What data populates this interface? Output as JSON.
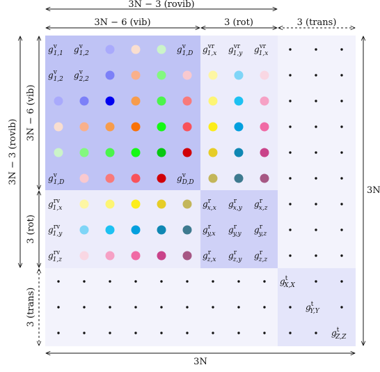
{
  "labels": {
    "top_rovib": "3N − 3 (rovib)",
    "top_vib": "3N − 6 (vib)",
    "top_rot": "3 (rot)",
    "top_trans": "3 (trans)",
    "left_rovib": "3N − 3 (rovib)",
    "left_vib": "3N − 6 (vib)",
    "left_rot": "3 (rot)",
    "left_trans": "3 (trans)",
    "right_total": "3N",
    "bottom_total": "3N"
  },
  "colors": {
    "vib_block": "#bfc3f5",
    "rot_block": "#cfd1f7",
    "trans_block": "#e4e5fa",
    "light_region": "#f3f3fc",
    "mid_region": "#ececfb",
    "dot_grid": [
      [
        "#a9aafc",
        "#f9ded0",
        "#cbf4c9"
      ],
      [
        "#7c80f8",
        "#f9b08b",
        "#83f87f",
        "#f9c9cf"
      ],
      [
        "#a9aafc",
        "#7c80f8",
        "#0000f0",
        "#f79c4c",
        "#4bf54b",
        "#f87a7a"
      ],
      [
        "#f9ded0",
        "#f9b08b",
        "#f79c4c",
        "#f97208",
        "#15f915",
        "#f9525b"
      ],
      [
        "#cbf4c9",
        "#83f87f",
        "#4bf54b",
        "#15f915",
        "#07c811",
        "#d00008"
      ],
      [
        "#f9c9cf",
        "#f87a7a",
        "#f9525b",
        "#d00008"
      ]
    ],
    "vr_dots": [
      [
        "#fdf6a3",
        "#7fd5f7",
        "#f9d7e3"
      ],
      [
        "#fdf574",
        "#1dc1f2",
        "#f6a1c5"
      ],
      [
        "#fced1a",
        "#039fde",
        "#f06aa5"
      ],
      [
        "#e6cd27",
        "#0f87b3",
        "#c9438a"
      ],
      [
        "#c3b65a",
        "#3e7a8f",
        "#a65784"
      ]
    ]
  },
  "matrix_labels": {
    "g11": {
      "base": "g",
      "sup": "v",
      "sub": "1,1"
    },
    "g12": {
      "base": "g",
      "sup": "v",
      "sub": "1,2"
    },
    "g1D": {
      "base": "g",
      "sup": "v",
      "sub": "1,D"
    },
    "g12b": {
      "base": "g",
      "sup": "v",
      "sub": "1,2"
    },
    "g22": {
      "base": "g",
      "sup": "v",
      "sub": "2,2"
    },
    "gD1": {
      "base": "g",
      "sup": "v",
      "sub": "1,D"
    },
    "gDD": {
      "base": "g",
      "sup": "v",
      "sub": "D,D"
    },
    "gvr1x": {
      "base": "g",
      "sup": "vr",
      "sub": "1,x"
    },
    "gvr1y": {
      "base": "g",
      "sup": "vr",
      "sub": "1,y"
    },
    "gvr1x2": {
      "base": "g",
      "sup": "vr",
      "sub": "1,x"
    },
    "grv1x": {
      "base": "g",
      "sup": "rv",
      "sub": "1,x"
    },
    "grv1y": {
      "base": "g",
      "sup": "rv",
      "sub": "1,y"
    },
    "grv1z": {
      "base": "g",
      "sup": "rv",
      "sub": "1,z"
    },
    "grxx": {
      "base": "g",
      "sup": "r",
      "sub": "x,x"
    },
    "grxy": {
      "base": "g",
      "sup": "r",
      "sub": "x,y"
    },
    "grxz": {
      "base": "g",
      "sup": "r",
      "sub": "x,z"
    },
    "gryx": {
      "base": "g",
      "sup": "r",
      "sub": "y,x"
    },
    "gryy": {
      "base": "g",
      "sup": "r",
      "sub": "y,y"
    },
    "gryz": {
      "base": "g",
      "sup": "r",
      "sub": "y,z"
    },
    "grzx": {
      "base": "g",
      "sup": "r",
      "sub": "z,x"
    },
    "grzy": {
      "base": "g",
      "sup": "r",
      "sub": "z,y"
    },
    "grzz": {
      "base": "g",
      "sup": "r",
      "sub": "z,z"
    },
    "gtXX": {
      "base": "g",
      "sup": "t",
      "sub": "X,X"
    },
    "gtYY": {
      "base": "g",
      "sup": "t",
      "sub": "Y,Y"
    },
    "gtZZ": {
      "base": "g",
      "sup": "t",
      "sub": "Z,Z"
    }
  }
}
